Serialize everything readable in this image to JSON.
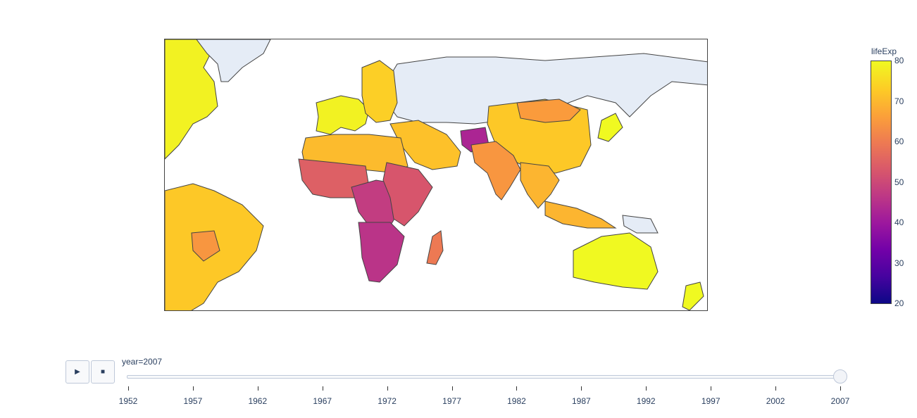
{
  "colorbar": {
    "title": "lifeExp",
    "ticks": [
      "80",
      "70",
      "60",
      "50",
      "40",
      "30",
      "20"
    ],
    "range": [
      20,
      80
    ],
    "colors": [
      "#0d0887",
      "#46039f",
      "#7201a8",
      "#9c179e",
      "#bd3786",
      "#d8576b",
      "#ed7953",
      "#fb9f3a",
      "#fdca26",
      "#f0f921"
    ]
  },
  "map": {
    "projection": "equirectangular",
    "no_data_color": "#e5ecf6",
    "border_color": "#444444",
    "regions": [
      {
        "name": "north-america-east",
        "lifeExp": 79
      },
      {
        "name": "greenland",
        "lifeExp": null
      },
      {
        "name": "russia",
        "lifeExp": null
      },
      {
        "name": "western-europe",
        "lifeExp": 79
      },
      {
        "name": "eastern-europe",
        "lifeExp": 74
      },
      {
        "name": "middle-east",
        "lifeExp": 72
      },
      {
        "name": "north-africa",
        "lifeExp": 71
      },
      {
        "name": "west-africa",
        "lifeExp": 55
      },
      {
        "name": "central-africa",
        "lifeExp": 48
      },
      {
        "name": "southern-africa",
        "lifeExp": 46
      },
      {
        "name": "east-africa",
        "lifeExp": 53
      },
      {
        "name": "madagascar",
        "lifeExp": 60
      },
      {
        "name": "afghanistan",
        "lifeExp": 43
      },
      {
        "name": "china",
        "lifeExp": 73
      },
      {
        "name": "mongolia",
        "lifeExp": 66
      },
      {
        "name": "india",
        "lifeExp": 65
      },
      {
        "name": "southeast-asia",
        "lifeExp": 70
      },
      {
        "name": "japan",
        "lifeExp": 82
      },
      {
        "name": "south-america",
        "lifeExp": 73
      },
      {
        "name": "bolivia",
        "lifeExp": 65
      },
      {
        "name": "indonesia",
        "lifeExp": 70
      },
      {
        "name": "papua-new-guinea",
        "lifeExp": null
      },
      {
        "name": "australia",
        "lifeExp": 81
      },
      {
        "name": "new-zealand",
        "lifeExp": 80
      }
    ]
  },
  "slider": {
    "prefix": "year=",
    "current": "2007",
    "steps": [
      "1952",
      "1957",
      "1962",
      "1967",
      "1972",
      "1977",
      "1982",
      "1987",
      "1992",
      "1997",
      "2002",
      "2007"
    ]
  },
  "controls": {
    "play_icon": "▶",
    "stop_icon": "■"
  }
}
